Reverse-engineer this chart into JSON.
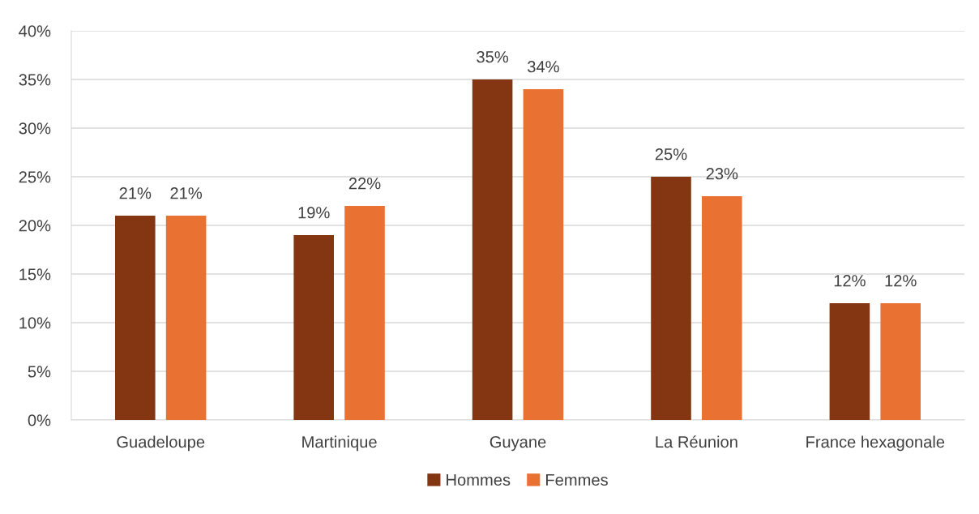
{
  "chart_data": {
    "type": "bar",
    "categories": [
      "Guadeloupe",
      "Martinique",
      "Guyane",
      "La Réunion",
      "France hexagonale"
    ],
    "series": [
      {
        "name": "Hommes",
        "color": "#843511",
        "values": [
          21,
          19,
          35,
          25,
          12
        ],
        "value_labels": [
          "21%",
          "19%",
          "35%",
          "25%",
          "12%"
        ]
      },
      {
        "name": "Femmes",
        "color": "#e97132",
        "values": [
          21,
          22,
          34,
          23,
          12
        ],
        "value_labels": [
          "21%",
          "22%",
          "34%",
          "23%",
          "12%"
        ]
      }
    ],
    "ylim": [
      0,
      40
    ],
    "yticks": [
      {
        "value": 0,
        "label": "0%"
      },
      {
        "value": 5,
        "label": "5%"
      },
      {
        "value": 10,
        "label": "10%"
      },
      {
        "value": 15,
        "label": "15%"
      },
      {
        "value": 20,
        "label": "20%"
      },
      {
        "value": 25,
        "label": "25%"
      },
      {
        "value": 30,
        "label": "30%"
      },
      {
        "value": 35,
        "label": "35%"
      },
      {
        "value": 40,
        "label": "40%"
      }
    ],
    "grid": "y",
    "legend": "bottom"
  }
}
